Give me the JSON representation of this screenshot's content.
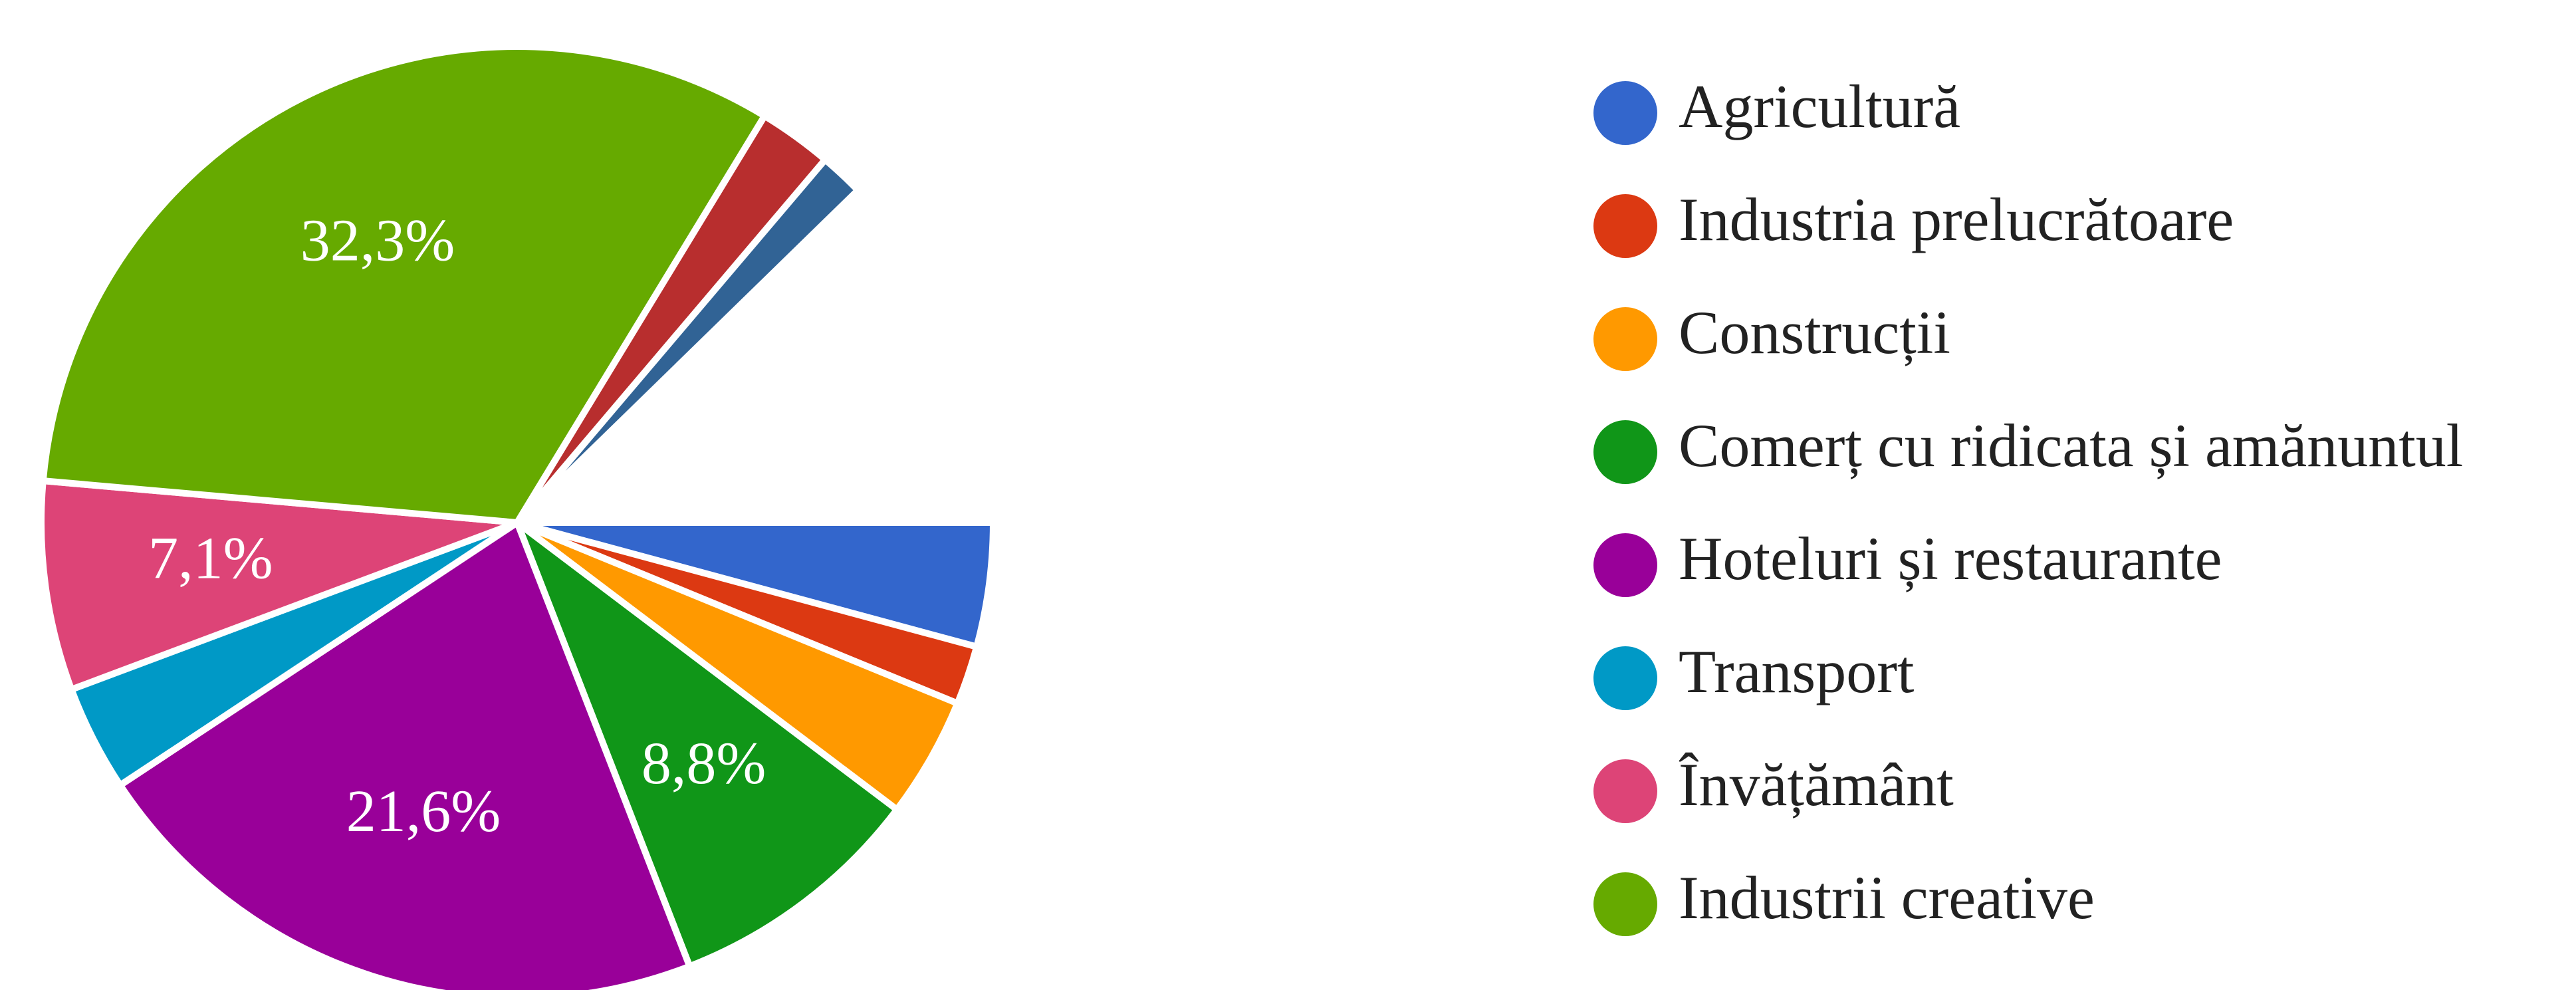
{
  "chart_data": {
    "type": "pie",
    "categories": [
      "Agricultură",
      "Industria prelucrătoare",
      "Construcții",
      "Comerț cu ridicata și amănuntul",
      "Hoteluri și restaurante",
      "Transport",
      "Învățământ",
      "Industrii creative",
      null,
      null
    ],
    "values": [
      4.2,
      2.0,
      4.1,
      8.8,
      21.6,
      3.6,
      7.1,
      32.3,
      2.5,
      1.5
    ],
    "value_labels": [
      null,
      null,
      null,
      "8,8%",
      "21,6%",
      null,
      "7,1%",
      "32,3%",
      null,
      null
    ],
    "colors": [
      "#3366cc",
      "#dc3912",
      "#ff9900",
      "#109618",
      "#990099",
      "#0099c6",
      "#dd4477",
      "#66aa00",
      "#b82e2e",
      "#316395"
    ],
    "legend": "right"
  }
}
